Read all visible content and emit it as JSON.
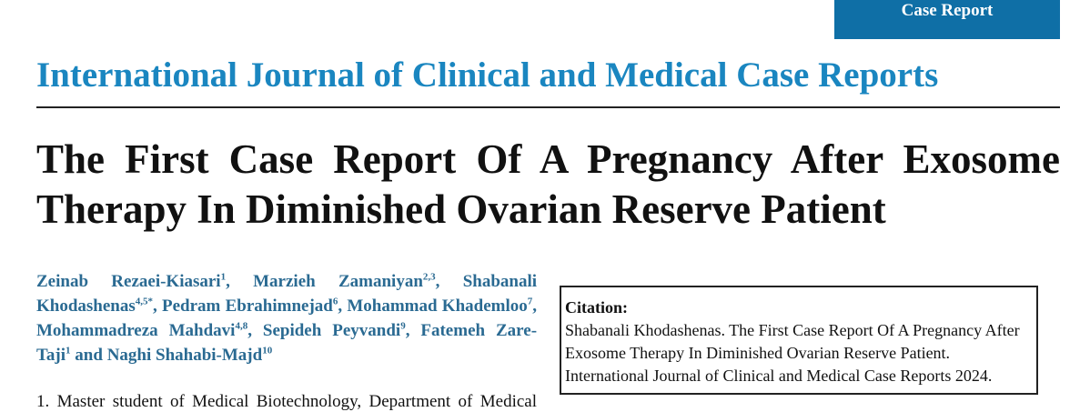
{
  "badge": "Case Report",
  "journal": "International Journal of Clinical and Medical Case Reports",
  "title": "The First Case Report Of A Pregnancy After Exosome Therapy In Diminished Ovarian Reserve Patient",
  "authors": [
    {
      "name": "Zeinab Rezaei-Kiasari",
      "sup": "1",
      "after": ","
    },
    {
      "name": "Marzieh Zamaniyan",
      "sup": "2,3",
      "after": ","
    },
    {
      "name": "Shabanali Khodashenas",
      "sup": "4,5*",
      "after": ","
    },
    {
      "name": "Pedram Ebrahimnejad",
      "sup": "6",
      "after": ","
    },
    {
      "name": "Mohammad Khademloo",
      "sup": "7",
      "after": ","
    },
    {
      "name": "Mohammadreza Mahdavi",
      "sup": "4,8",
      "after": ","
    },
    {
      "name": "Sepideh Peyvandi",
      "sup": "9",
      "after": ","
    },
    {
      "name": "Fatemeh Zare-Taji",
      "sup": "1",
      "after": " and"
    },
    {
      "name": "Naghi Shahabi-Majd",
      "sup": "10"
    }
  ],
  "citation": {
    "label": "Citation:",
    "lines": [
      "Shabanali Khodashenas. The First Case Report Of A Pregnancy After",
      "Exosome Therapy In Diminished Ovarian Reserve Patient.",
      "International Journal of Clinical and Medical Case Reports 2024."
    ]
  },
  "affiliation": "1. Master student of Medical Biotechnology, Department of Medical"
}
